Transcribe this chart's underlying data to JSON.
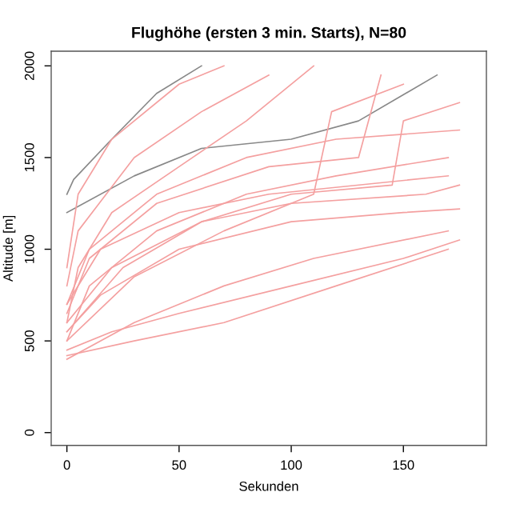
{
  "chart_data": {
    "type": "line",
    "title": "Flughöhe (ersten 3 min. Starts), N=80",
    "xlabel": "Sekunden",
    "ylabel": "Altitude [m]",
    "xlim": [
      -7,
      187
    ],
    "ylim": [
      -70,
      2080
    ],
    "xticks": [
      0,
      50,
      100,
      150
    ],
    "yticks": [
      0,
      500,
      1000,
      1500,
      2000
    ],
    "grid": false,
    "legend": false,
    "marker": "none",
    "line_style": "solid",
    "series": [
      {
        "color": "#888888",
        "x": [
          0,
          3,
          20,
          40,
          60
        ],
        "values": [
          1300,
          1380,
          1600,
          1850,
          2000
        ]
      },
      {
        "color": "#888888",
        "x": [
          0,
          30,
          60,
          100,
          130,
          165
        ],
        "values": [
          1200,
          1400,
          1550,
          1600,
          1700,
          1950
        ]
      },
      {
        "color": "#f4a0a0",
        "x": [
          0,
          5,
          20,
          50,
          80,
          110
        ],
        "values": [
          600,
          900,
          1200,
          1450,
          1700,
          2000
        ]
      },
      {
        "color": "#f4a0a0",
        "x": [
          0,
          10,
          40,
          80,
          120,
          170
        ],
        "values": [
          500,
          800,
          1100,
          1300,
          1400,
          1500
        ]
      },
      {
        "color": "#f4a0a0",
        "x": [
          0,
          20,
          50,
          100,
          150,
          175
        ],
        "values": [
          450,
          550,
          650,
          800,
          950,
          1050
        ]
      },
      {
        "color": "#f4a0a0",
        "x": [
          0,
          30,
          70,
          120,
          170
        ],
        "values": [
          420,
          500,
          600,
          800,
          1000
        ]
      },
      {
        "color": "#f4a0a0",
        "x": [
          0,
          10,
          40,
          80,
          120,
          175
        ],
        "values": [
          700,
          1000,
          1300,
          1500,
          1600,
          1650
        ]
      },
      {
        "color": "#f4a0a0",
        "x": [
          0,
          5,
          30,
          60,
          90
        ],
        "values": [
          800,
          1100,
          1500,
          1750,
          1950
        ]
      },
      {
        "color": "#f4a0a0",
        "x": [
          0,
          15,
          50,
          100,
          150,
          175
        ],
        "values": [
          550,
          750,
          1000,
          1150,
          1200,
          1220
        ]
      },
      {
        "color": "#f4a0a0",
        "x": [
          0,
          20,
          60,
          100,
          160,
          175
        ],
        "values": [
          600,
          900,
          1150,
          1250,
          1300,
          1350
        ]
      },
      {
        "color": "#f4a0a0",
        "x": [
          0,
          10,
          40,
          90,
          130,
          140
        ],
        "values": [
          650,
          950,
          1250,
          1450,
          1500,
          1950
        ]
      },
      {
        "color": "#f4a0a0",
        "x": [
          0,
          30,
          70,
          110,
          118,
          150
        ],
        "values": [
          500,
          850,
          1100,
          1300,
          1750,
          1900
        ]
      },
      {
        "color": "#f4a0a0",
        "x": [
          0,
          30,
          70,
          110,
          170
        ],
        "values": [
          400,
          600,
          800,
          950,
          1100
        ]
      },
      {
        "color": "#f4a0a0",
        "x": [
          0,
          15,
          50,
          90,
          170
        ],
        "values": [
          700,
          1000,
          1200,
          1300,
          1400
        ]
      },
      {
        "color": "#f4a0a0",
        "x": [
          0,
          5,
          20,
          50,
          70
        ],
        "values": [
          900,
          1300,
          1600,
          1900,
          2000
        ]
      },
      {
        "color": "#f4a0a0",
        "x": [
          0,
          25,
          60,
          100,
          145,
          150,
          175
        ],
        "values": [
          550,
          900,
          1150,
          1300,
          1350,
          1700,
          1800
        ]
      }
    ]
  }
}
